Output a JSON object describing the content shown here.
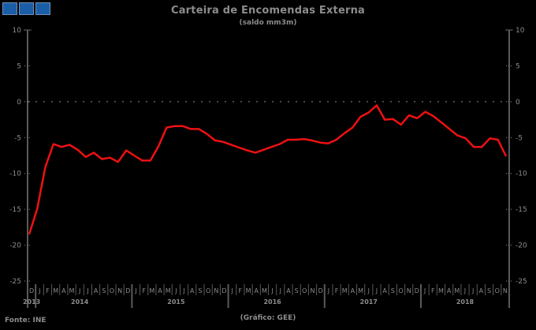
{
  "toolbar": {
    "buttons": [
      {
        "name": "toolbar-button-1",
        "color": "#1a5ea8"
      },
      {
        "name": "toolbar-button-2",
        "color": "#1a5ea8"
      },
      {
        "name": "toolbar-button-3",
        "color": "#1a5ea8"
      }
    ]
  },
  "header": {
    "title": "Carteira de Encomendas Externa",
    "subtitle": "(saldo mm3m)"
  },
  "footer": {
    "source": "Fonte: INE",
    "credit": "(Gráfico: GEE)"
  },
  "colors": {
    "background": "#000000",
    "line": "#ee1111",
    "axis": "#5a5a5a",
    "text": "#8c8c8c",
    "button": "#1a5ea8"
  },
  "chart_data": {
    "type": "line",
    "title": "Carteira de Encomendas Externa",
    "subtitle": "(saldo mm3m)",
    "xlabel": "",
    "ylabel": "",
    "ylim": [
      -25,
      10
    ],
    "yticks": [
      10,
      5,
      0,
      -5,
      -10,
      -15,
      -20,
      -25
    ],
    "grid": false,
    "zero_line": "dotted",
    "dual_y_axis": true,
    "legend": null,
    "year_labels": [
      {
        "label": "2013",
        "month_index": 0
      },
      {
        "label": "2014",
        "month_index": 6
      },
      {
        "label": "2015",
        "month_index": 18
      },
      {
        "label": "2016",
        "month_index": 30
      },
      {
        "label": "2017",
        "month_index": 42
      },
      {
        "label": "2018",
        "month_index": 54
      }
    ],
    "categories": [
      "D",
      "J",
      "F",
      "M",
      "A",
      "M",
      "J",
      "J",
      "A",
      "S",
      "O",
      "N",
      "D",
      "J",
      "F",
      "M",
      "A",
      "M",
      "J",
      "J",
      "A",
      "S",
      "O",
      "N",
      "D",
      "J",
      "F",
      "M",
      "A",
      "M",
      "J",
      "J",
      "A",
      "S",
      "O",
      "N",
      "D",
      "J",
      "F",
      "M",
      "A",
      "M",
      "J",
      "J",
      "A",
      "S",
      "O",
      "N",
      "D",
      "J",
      "F",
      "M",
      "A",
      "M",
      "J",
      "J",
      "A",
      "S",
      "O",
      "N"
    ],
    "x": [
      "2013-12",
      "2014-01",
      "2014-02",
      "2014-03",
      "2014-04",
      "2014-05",
      "2014-06",
      "2014-07",
      "2014-08",
      "2014-09",
      "2014-10",
      "2014-11",
      "2014-12",
      "2015-01",
      "2015-02",
      "2015-03",
      "2015-04",
      "2015-05",
      "2015-06",
      "2015-07",
      "2015-08",
      "2015-09",
      "2015-10",
      "2015-11",
      "2015-12",
      "2016-01",
      "2016-02",
      "2016-03",
      "2016-04",
      "2016-05",
      "2016-06",
      "2016-07",
      "2016-08",
      "2016-09",
      "2016-10",
      "2016-11",
      "2016-12",
      "2017-01",
      "2017-02",
      "2017-03",
      "2017-04",
      "2017-05",
      "2017-06",
      "2017-07",
      "2017-08",
      "2017-09",
      "2017-10",
      "2017-11",
      "2017-12",
      "2018-01",
      "2018-02",
      "2018-03",
      "2018-04",
      "2018-05",
      "2018-06",
      "2018-07",
      "2018-08",
      "2018-09",
      "2018-10",
      "2018-11"
    ],
    "series": [
      {
        "name": "Carteira de Encomendas Externa (saldo mm3m)",
        "color": "#ee1111",
        "values": [
          -18.5,
          -14.9,
          -9.1,
          -5.9,
          -6.3,
          -6.0,
          -6.7,
          -7.7,
          -7.1,
          -8.0,
          -7.8,
          -8.4,
          -6.8,
          -7.5,
          -8.2,
          -8.2,
          -6.2,
          -3.6,
          -3.4,
          -3.4,
          -3.8,
          -3.8,
          -4.5,
          -5.4,
          -5.6,
          -6.0,
          -6.4,
          -6.8,
          -7.1,
          -6.7,
          -6.3,
          -5.9,
          -5.3,
          -5.3,
          -5.2,
          -5.4,
          -5.7,
          -5.8,
          -5.3,
          -4.4,
          -3.6,
          -2.1,
          -1.5,
          -0.5,
          -2.5,
          -2.4,
          -3.2,
          -1.9,
          -2.3,
          -1.4,
          -2.0,
          -2.9,
          -3.8,
          -4.7,
          -5.1,
          -6.3,
          -6.3,
          -5.1,
          -5.3,
          -7.6
        ]
      }
    ]
  }
}
